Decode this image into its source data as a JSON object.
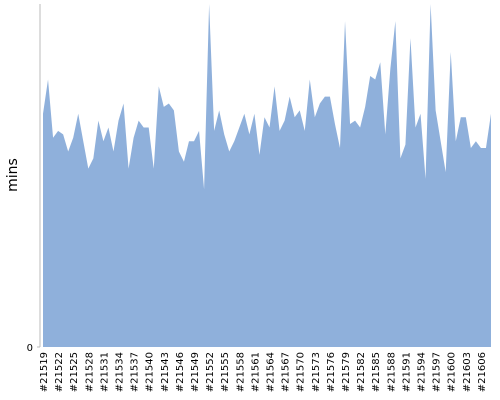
{
  "chart_data": {
    "type": "area",
    "y_label": "mins",
    "color": "#8fb0db",
    "ylim": [
      0,
      100
    ],
    "yticks": [
      0
    ],
    "categories": [
      "#21519",
      null,
      null,
      "#21522",
      null,
      null,
      "#21525",
      null,
      null,
      "#21528",
      null,
      null,
      "#21531",
      null,
      null,
      "#21534",
      null,
      null,
      "#21537",
      null,
      null,
      "#21540",
      null,
      null,
      "#21543",
      null,
      null,
      "#21546",
      null,
      null,
      "#21549",
      null,
      null,
      "#21552",
      null,
      null,
      "#21555",
      null,
      null,
      "#21558",
      null,
      null,
      "#21561",
      null,
      null,
      "#21564",
      null,
      null,
      "#21567",
      null,
      null,
      "#21570",
      null,
      null,
      "#21573",
      null,
      null,
      "#21576",
      null,
      null,
      "#21579",
      null,
      null,
      "#21582",
      null,
      null,
      "#21585",
      null,
      null,
      "#21588",
      null,
      null,
      "#21591",
      null,
      null,
      "#21594",
      null,
      null,
      "#21597",
      null,
      null,
      "#21600",
      null,
      null,
      "#21603",
      null,
      null,
      "#21606",
      null,
      null
    ],
    "values": [
      68,
      78,
      61,
      63,
      62,
      57,
      61,
      68,
      60,
      52,
      55,
      66,
      60,
      64,
      57,
      66,
      71,
      52,
      61,
      66,
      64,
      64,
      52,
      76,
      70,
      71,
      69,
      57,
      54,
      60,
      60,
      63,
      46,
      100,
      63,
      69,
      62,
      57,
      60,
      64,
      68,
      62,
      68,
      56,
      67,
      64,
      76,
      63,
      66,
      73,
      67,
      69,
      63,
      78,
      67,
      71,
      73,
      73,
      65,
      58,
      95,
      65,
      66,
      64,
      70,
      79,
      78,
      83,
      62,
      81,
      95,
      55,
      59,
      90,
      64,
      68,
      49,
      100,
      69,
      60,
      51,
      86,
      60,
      67,
      67,
      58,
      60,
      58,
      58,
      68
    ]
  }
}
